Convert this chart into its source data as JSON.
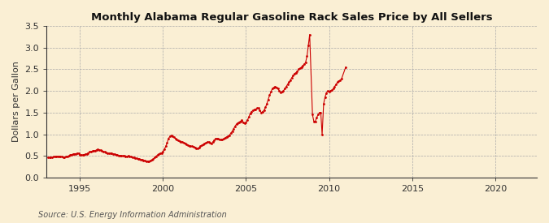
{
  "title": "Monthly Alabama Regular Gasoline Rack Sales Price by All Sellers",
  "ylabel": "Dollars per Gallon",
  "source": "Source: U.S. Energy Information Administration",
  "xlim": [
    1993.0,
    2022.5
  ],
  "ylim": [
    0.0,
    3.5
  ],
  "xticks": [
    1995,
    2000,
    2005,
    2010,
    2015,
    2020
  ],
  "yticks": [
    0.0,
    0.5,
    1.0,
    1.5,
    2.0,
    2.5,
    3.0,
    3.5
  ],
  "background_color": "#faefd4",
  "marker_color": "#cc0000",
  "line_color": "#cc0000",
  "grid_color": "#aaaaaa",
  "data": [
    [
      1993.08,
      0.46
    ],
    [
      1993.17,
      0.46
    ],
    [
      1993.25,
      0.47
    ],
    [
      1993.33,
      0.47
    ],
    [
      1993.42,
      0.48
    ],
    [
      1993.5,
      0.48
    ],
    [
      1993.58,
      0.49
    ],
    [
      1993.67,
      0.49
    ],
    [
      1993.75,
      0.49
    ],
    [
      1993.83,
      0.48
    ],
    [
      1993.92,
      0.48
    ],
    [
      1994.0,
      0.47
    ],
    [
      1994.08,
      0.47
    ],
    [
      1994.17,
      0.48
    ],
    [
      1994.25,
      0.49
    ],
    [
      1994.33,
      0.5
    ],
    [
      1994.42,
      0.52
    ],
    [
      1994.5,
      0.53
    ],
    [
      1994.58,
      0.54
    ],
    [
      1994.67,
      0.55
    ],
    [
      1994.75,
      0.55
    ],
    [
      1994.83,
      0.56
    ],
    [
      1994.92,
      0.56
    ],
    [
      1995.0,
      0.53
    ],
    [
      1995.08,
      0.52
    ],
    [
      1995.17,
      0.52
    ],
    [
      1995.25,
      0.53
    ],
    [
      1995.33,
      0.54
    ],
    [
      1995.42,
      0.55
    ],
    [
      1995.5,
      0.57
    ],
    [
      1995.58,
      0.59
    ],
    [
      1995.67,
      0.6
    ],
    [
      1995.75,
      0.61
    ],
    [
      1995.83,
      0.62
    ],
    [
      1995.92,
      0.62
    ],
    [
      1996.0,
      0.64
    ],
    [
      1996.08,
      0.65
    ],
    [
      1996.17,
      0.64
    ],
    [
      1996.25,
      0.63
    ],
    [
      1996.33,
      0.62
    ],
    [
      1996.42,
      0.6
    ],
    [
      1996.5,
      0.59
    ],
    [
      1996.58,
      0.58
    ],
    [
      1996.67,
      0.57
    ],
    [
      1996.75,
      0.56
    ],
    [
      1996.83,
      0.56
    ],
    [
      1996.92,
      0.56
    ],
    [
      1997.0,
      0.55
    ],
    [
      1997.08,
      0.54
    ],
    [
      1997.17,
      0.53
    ],
    [
      1997.25,
      0.52
    ],
    [
      1997.33,
      0.51
    ],
    [
      1997.42,
      0.51
    ],
    [
      1997.5,
      0.5
    ],
    [
      1997.58,
      0.5
    ],
    [
      1997.67,
      0.5
    ],
    [
      1997.75,
      0.49
    ],
    [
      1997.83,
      0.49
    ],
    [
      1997.92,
      0.5
    ],
    [
      1998.0,
      0.49
    ],
    [
      1998.08,
      0.48
    ],
    [
      1998.17,
      0.47
    ],
    [
      1998.25,
      0.46
    ],
    [
      1998.33,
      0.45
    ],
    [
      1998.42,
      0.44
    ],
    [
      1998.5,
      0.43
    ],
    [
      1998.58,
      0.43
    ],
    [
      1998.67,
      0.42
    ],
    [
      1998.75,
      0.41
    ],
    [
      1998.83,
      0.4
    ],
    [
      1998.92,
      0.39
    ],
    [
      1999.0,
      0.38
    ],
    [
      1999.08,
      0.38
    ],
    [
      1999.17,
      0.38
    ],
    [
      1999.25,
      0.39
    ],
    [
      1999.33,
      0.41
    ],
    [
      1999.42,
      0.43
    ],
    [
      1999.5,
      0.46
    ],
    [
      1999.58,
      0.49
    ],
    [
      1999.67,
      0.52
    ],
    [
      1999.75,
      0.54
    ],
    [
      1999.83,
      0.56
    ],
    [
      1999.92,
      0.57
    ],
    [
      2000.0,
      0.6
    ],
    [
      2000.08,
      0.65
    ],
    [
      2000.17,
      0.72
    ],
    [
      2000.25,
      0.8
    ],
    [
      2000.33,
      0.9
    ],
    [
      2000.42,
      0.95
    ],
    [
      2000.5,
      0.97
    ],
    [
      2000.58,
      0.96
    ],
    [
      2000.67,
      0.93
    ],
    [
      2000.75,
      0.9
    ],
    [
      2000.83,
      0.88
    ],
    [
      2000.92,
      0.86
    ],
    [
      2001.0,
      0.84
    ],
    [
      2001.08,
      0.83
    ],
    [
      2001.17,
      0.82
    ],
    [
      2001.25,
      0.8
    ],
    [
      2001.33,
      0.79
    ],
    [
      2001.42,
      0.77
    ],
    [
      2001.5,
      0.75
    ],
    [
      2001.58,
      0.73
    ],
    [
      2001.67,
      0.72
    ],
    [
      2001.75,
      0.72
    ],
    [
      2001.83,
      0.71
    ],
    [
      2001.92,
      0.7
    ],
    [
      2002.0,
      0.68
    ],
    [
      2002.08,
      0.67
    ],
    [
      2002.17,
      0.69
    ],
    [
      2002.25,
      0.72
    ],
    [
      2002.33,
      0.74
    ],
    [
      2002.42,
      0.76
    ],
    [
      2002.5,
      0.78
    ],
    [
      2002.58,
      0.8
    ],
    [
      2002.67,
      0.82
    ],
    [
      2002.75,
      0.82
    ],
    [
      2002.83,
      0.8
    ],
    [
      2002.92,
      0.78
    ],
    [
      2003.0,
      0.82
    ],
    [
      2003.08,
      0.86
    ],
    [
      2003.17,
      0.9
    ],
    [
      2003.25,
      0.9
    ],
    [
      2003.33,
      0.89
    ],
    [
      2003.42,
      0.88
    ],
    [
      2003.5,
      0.87
    ],
    [
      2003.58,
      0.87
    ],
    [
      2003.67,
      0.9
    ],
    [
      2003.75,
      0.92
    ],
    [
      2003.83,
      0.94
    ],
    [
      2003.92,
      0.95
    ],
    [
      2004.0,
      0.98
    ],
    [
      2004.08,
      1.02
    ],
    [
      2004.17,
      1.07
    ],
    [
      2004.25,
      1.12
    ],
    [
      2004.33,
      1.18
    ],
    [
      2004.42,
      1.23
    ],
    [
      2004.5,
      1.26
    ],
    [
      2004.58,
      1.28
    ],
    [
      2004.67,
      1.3
    ],
    [
      2004.75,
      1.32
    ],
    [
      2004.83,
      1.28
    ],
    [
      2004.92,
      1.25
    ],
    [
      2005.0,
      1.28
    ],
    [
      2005.08,
      1.32
    ],
    [
      2005.17,
      1.4
    ],
    [
      2005.25,
      1.48
    ],
    [
      2005.33,
      1.52
    ],
    [
      2005.42,
      1.55
    ],
    [
      2005.5,
      1.57
    ],
    [
      2005.58,
      1.58
    ],
    [
      2005.67,
      1.6
    ],
    [
      2005.75,
      1.6
    ],
    [
      2005.83,
      1.55
    ],
    [
      2005.92,
      1.5
    ],
    [
      2006.0,
      1.52
    ],
    [
      2006.08,
      1.55
    ],
    [
      2006.17,
      1.62
    ],
    [
      2006.25,
      1.7
    ],
    [
      2006.33,
      1.8
    ],
    [
      2006.42,
      1.9
    ],
    [
      2006.5,
      1.98
    ],
    [
      2006.58,
      2.05
    ],
    [
      2006.67,
      2.08
    ],
    [
      2006.75,
      2.1
    ],
    [
      2006.83,
      2.08
    ],
    [
      2006.92,
      2.05
    ],
    [
      2007.0,
      2.0
    ],
    [
      2007.08,
      1.97
    ],
    [
      2007.17,
      1.98
    ],
    [
      2007.25,
      2.0
    ],
    [
      2007.33,
      2.05
    ],
    [
      2007.42,
      2.1
    ],
    [
      2007.5,
      2.15
    ],
    [
      2007.58,
      2.2
    ],
    [
      2007.67,
      2.25
    ],
    [
      2007.75,
      2.3
    ],
    [
      2007.83,
      2.35
    ],
    [
      2007.92,
      2.4
    ],
    [
      2008.0,
      2.42
    ],
    [
      2008.08,
      2.45
    ],
    [
      2008.17,
      2.5
    ],
    [
      2008.25,
      2.52
    ],
    [
      2008.33,
      2.55
    ],
    [
      2008.42,
      2.58
    ],
    [
      2008.5,
      2.62
    ],
    [
      2008.58,
      2.65
    ],
    [
      2008.67,
      2.8
    ],
    [
      2008.75,
      3.05
    ],
    [
      2008.83,
      3.3
    ],
    [
      2009.0,
      1.45
    ],
    [
      2009.08,
      1.3
    ],
    [
      2009.17,
      1.3
    ],
    [
      2009.25,
      1.38
    ],
    [
      2009.33,
      1.45
    ],
    [
      2009.42,
      1.5
    ],
    [
      2009.5,
      1.5
    ],
    [
      2009.58,
      0.99
    ],
    [
      2009.67,
      1.7
    ],
    [
      2009.75,
      1.85
    ],
    [
      2009.83,
      1.95
    ],
    [
      2009.92,
      2.0
    ],
    [
      2010.0,
      1.98
    ],
    [
      2010.08,
      2.0
    ],
    [
      2010.17,
      2.02
    ],
    [
      2010.25,
      2.05
    ],
    [
      2010.33,
      2.1
    ],
    [
      2010.42,
      2.15
    ],
    [
      2010.5,
      2.2
    ],
    [
      2010.58,
      2.22
    ],
    [
      2010.67,
      2.25
    ],
    [
      2010.75,
      2.28
    ],
    [
      2011.0,
      2.55
    ]
  ]
}
